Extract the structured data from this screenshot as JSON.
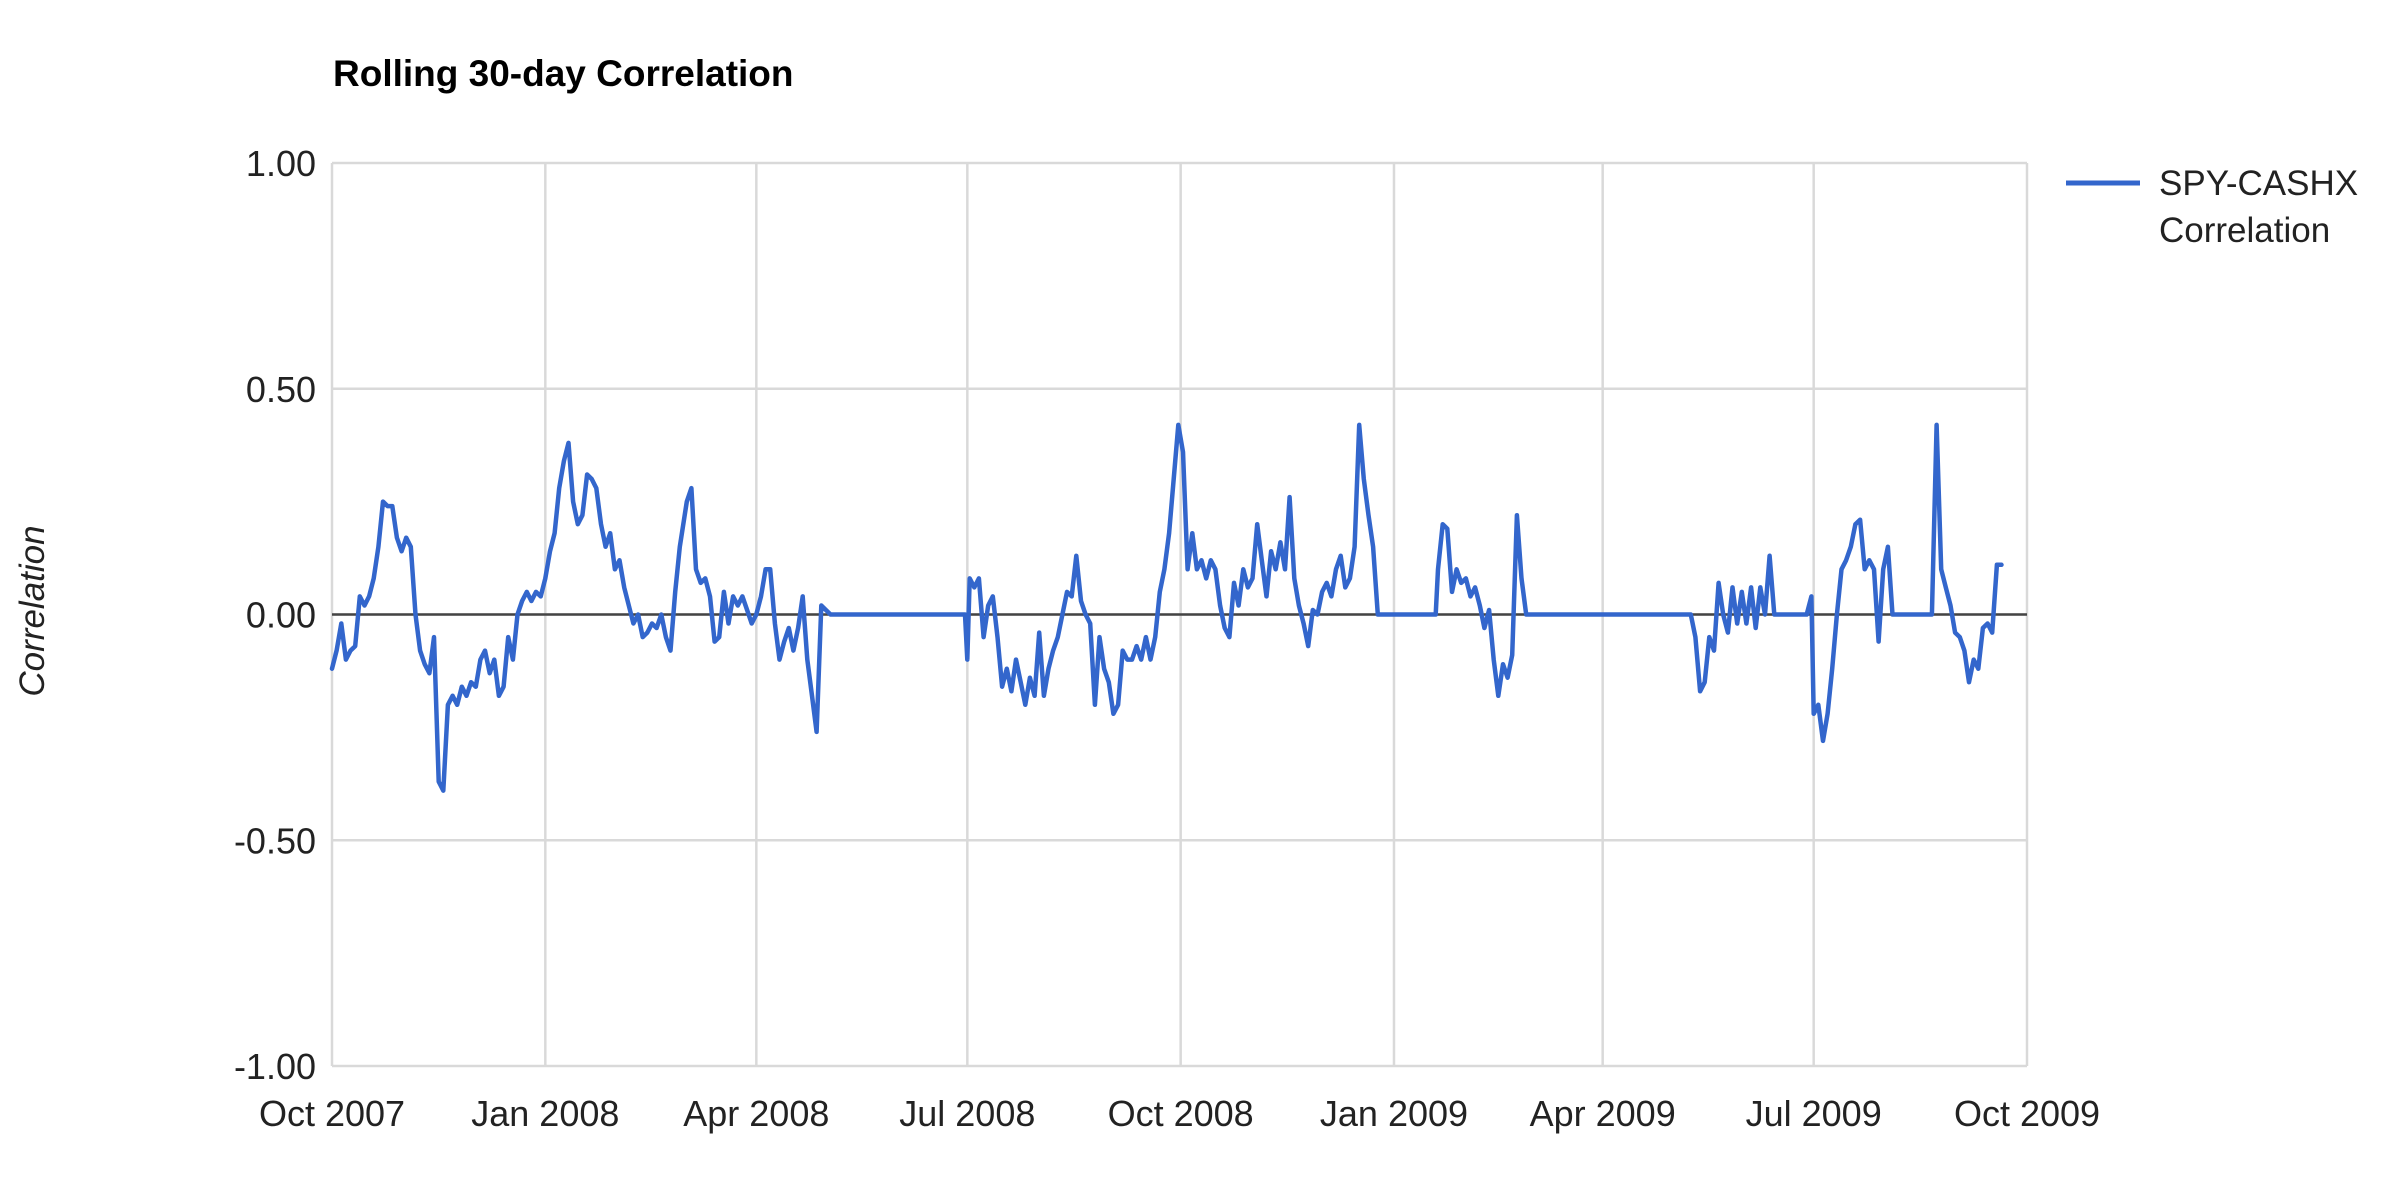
{
  "chart_data": {
    "type": "line",
    "title": "Rolling 30-day Correlation",
    "xlabel": "",
    "ylabel": "Correlation",
    "ylim": [
      -1,
      1
    ],
    "xlim": [
      "2007-10-01",
      "2009-10-01"
    ],
    "y_ticks": [
      "1.00",
      "0.50",
      "0.00",
      "-0.50",
      "-1.00"
    ],
    "y_tick_values": [
      1,
      0.5,
      0,
      -0.5,
      -1
    ],
    "x_ticks": [
      "Oct 2007",
      "Jan 2008",
      "Apr 2008",
      "Jul 2008",
      "Oct 2008",
      "Jan 2009",
      "Apr 2009",
      "Jul 2009",
      "Oct 2009"
    ],
    "x_tick_dates": [
      "2007-10-01",
      "2008-01-01",
      "2008-04-01",
      "2008-07-01",
      "2008-10-01",
      "2009-01-01",
      "2009-04-01",
      "2009-07-01",
      "2009-10-01"
    ],
    "grid": true,
    "legend_position": "right",
    "series": [
      {
        "name": "SPY-CASHX Correlation",
        "color": "#3366cc",
        "points": [
          [
            "2007-10-01",
            -0.12
          ],
          [
            "2007-10-03",
            -0.08
          ],
          [
            "2007-10-05",
            -0.02
          ],
          [
            "2007-10-07",
            -0.1
          ],
          [
            "2007-10-09",
            -0.08
          ],
          [
            "2007-10-11",
            -0.07
          ],
          [
            "2007-10-13",
            0.04
          ],
          [
            "2007-10-15",
            0.02
          ],
          [
            "2007-10-17",
            0.04
          ],
          [
            "2007-10-19",
            0.08
          ],
          [
            "2007-10-21",
            0.15
          ],
          [
            "2007-10-23",
            0.25
          ],
          [
            "2007-10-25",
            0.24
          ],
          [
            "2007-10-27",
            0.24
          ],
          [
            "2007-10-29",
            0.17
          ],
          [
            "2007-10-31",
            0.14
          ],
          [
            "2007-11-02",
            0.17
          ],
          [
            "2007-11-04",
            0.15
          ],
          [
            "2007-11-06",
            0.0
          ],
          [
            "2007-11-08",
            -0.08
          ],
          [
            "2007-11-10",
            -0.11
          ],
          [
            "2007-11-12",
            -0.13
          ],
          [
            "2007-11-14",
            -0.05
          ],
          [
            "2007-11-16",
            -0.37
          ],
          [
            "2007-11-18",
            -0.39
          ],
          [
            "2007-11-20",
            -0.2
          ],
          [
            "2007-11-22",
            -0.18
          ],
          [
            "2007-11-24",
            -0.2
          ],
          [
            "2007-11-26",
            -0.16
          ],
          [
            "2007-11-28",
            -0.18
          ],
          [
            "2007-11-30",
            -0.15
          ],
          [
            "2007-12-02",
            -0.16
          ],
          [
            "2007-12-04",
            -0.1
          ],
          [
            "2007-12-06",
            -0.08
          ],
          [
            "2007-12-08",
            -0.13
          ],
          [
            "2007-12-10",
            -0.1
          ],
          [
            "2007-12-12",
            -0.18
          ],
          [
            "2007-12-14",
            -0.16
          ],
          [
            "2007-12-16",
            -0.05
          ],
          [
            "2007-12-18",
            -0.1
          ],
          [
            "2007-12-20",
            0.0
          ],
          [
            "2007-12-22",
            0.03
          ],
          [
            "2007-12-24",
            0.05
          ],
          [
            "2007-12-26",
            0.03
          ],
          [
            "2007-12-28",
            0.05
          ],
          [
            "2007-12-30",
            0.04
          ],
          [
            "2008-01-01",
            0.08
          ],
          [
            "2008-01-03",
            0.14
          ],
          [
            "2008-01-05",
            0.18
          ],
          [
            "2008-01-07",
            0.28
          ],
          [
            "2008-01-09",
            0.34
          ],
          [
            "2008-01-11",
            0.38
          ],
          [
            "2008-01-13",
            0.25
          ],
          [
            "2008-01-15",
            0.2
          ],
          [
            "2008-01-17",
            0.22
          ],
          [
            "2008-01-19",
            0.31
          ],
          [
            "2008-01-21",
            0.3
          ],
          [
            "2008-01-23",
            0.28
          ],
          [
            "2008-01-25",
            0.2
          ],
          [
            "2008-01-27",
            0.15
          ],
          [
            "2008-01-29",
            0.18
          ],
          [
            "2008-01-31",
            0.1
          ],
          [
            "2008-02-02",
            0.12
          ],
          [
            "2008-02-04",
            0.06
          ],
          [
            "2008-02-06",
            0.02
          ],
          [
            "2008-02-08",
            -0.02
          ],
          [
            "2008-02-10",
            0.0
          ],
          [
            "2008-02-12",
            -0.05
          ],
          [
            "2008-02-14",
            -0.04
          ],
          [
            "2008-02-16",
            -0.02
          ],
          [
            "2008-02-18",
            -0.03
          ],
          [
            "2008-02-20",
            0.0
          ],
          [
            "2008-02-22",
            -0.05
          ],
          [
            "2008-02-24",
            -0.08
          ],
          [
            "2008-02-26",
            0.05
          ],
          [
            "2008-02-28",
            0.15
          ],
          [
            "2008-03-02",
            0.25
          ],
          [
            "2008-03-04",
            0.28
          ],
          [
            "2008-03-06",
            0.1
          ],
          [
            "2008-03-08",
            0.07
          ],
          [
            "2008-03-10",
            0.08
          ],
          [
            "2008-03-12",
            0.04
          ],
          [
            "2008-03-14",
            -0.06
          ],
          [
            "2008-03-16",
            -0.05
          ],
          [
            "2008-03-18",
            0.05
          ],
          [
            "2008-03-20",
            -0.02
          ],
          [
            "2008-03-22",
            0.04
          ],
          [
            "2008-03-24",
            0.02
          ],
          [
            "2008-03-26",
            0.04
          ],
          [
            "2008-03-28",
            0.01
          ],
          [
            "2008-03-30",
            -0.02
          ],
          [
            "2008-04-01",
            0.0
          ],
          [
            "2008-04-03",
            0.04
          ],
          [
            "2008-04-05",
            0.1
          ],
          [
            "2008-04-07",
            0.1
          ],
          [
            "2008-04-09",
            -0.02
          ],
          [
            "2008-04-11",
            -0.1
          ],
          [
            "2008-04-13",
            -0.06
          ],
          [
            "2008-04-15",
            -0.03
          ],
          [
            "2008-04-17",
            -0.08
          ],
          [
            "2008-04-19",
            -0.03
          ],
          [
            "2008-04-21",
            0.04
          ],
          [
            "2008-04-23",
            -0.1
          ],
          [
            "2008-04-25",
            -0.18
          ],
          [
            "2008-04-27",
            -0.26
          ],
          [
            "2008-04-29",
            0.02
          ],
          [
            "2008-05-01",
            0.01
          ],
          [
            "2008-05-03",
            0.0
          ],
          [
            "2008-06-30",
            0.0
          ],
          [
            "2008-07-01",
            -0.1
          ],
          [
            "2008-07-02",
            0.08
          ],
          [
            "2008-07-04",
            0.06
          ],
          [
            "2008-07-06",
            0.08
          ],
          [
            "2008-07-08",
            -0.05
          ],
          [
            "2008-07-10",
            0.02
          ],
          [
            "2008-07-12",
            0.04
          ],
          [
            "2008-07-14",
            -0.05
          ],
          [
            "2008-07-16",
            -0.16
          ],
          [
            "2008-07-18",
            -0.12
          ],
          [
            "2008-07-20",
            -0.17
          ],
          [
            "2008-07-22",
            -0.1
          ],
          [
            "2008-07-24",
            -0.15
          ],
          [
            "2008-07-26",
            -0.2
          ],
          [
            "2008-07-28",
            -0.14
          ],
          [
            "2008-07-30",
            -0.18
          ],
          [
            "2008-08-01",
            -0.04
          ],
          [
            "2008-08-03",
            -0.18
          ],
          [
            "2008-08-05",
            -0.12
          ],
          [
            "2008-08-07",
            -0.08
          ],
          [
            "2008-08-09",
            -0.05
          ],
          [
            "2008-08-11",
            0.0
          ],
          [
            "2008-08-13",
            0.05
          ],
          [
            "2008-08-15",
            0.04
          ],
          [
            "2008-08-17",
            0.13
          ],
          [
            "2008-08-19",
            0.03
          ],
          [
            "2008-08-21",
            0.0
          ],
          [
            "2008-08-23",
            -0.02
          ],
          [
            "2008-08-25",
            -0.2
          ],
          [
            "2008-08-27",
            -0.05
          ],
          [
            "2008-08-29",
            -0.12
          ],
          [
            "2008-08-31",
            -0.15
          ],
          [
            "2008-09-02",
            -0.22
          ],
          [
            "2008-09-04",
            -0.2
          ],
          [
            "2008-09-06",
            -0.08
          ],
          [
            "2008-09-08",
            -0.1
          ],
          [
            "2008-09-10",
            -0.1
          ],
          [
            "2008-09-12",
            -0.07
          ],
          [
            "2008-09-14",
            -0.1
          ],
          [
            "2008-09-16",
            -0.05
          ],
          [
            "2008-09-18",
            -0.1
          ],
          [
            "2008-09-20",
            -0.05
          ],
          [
            "2008-09-22",
            0.05
          ],
          [
            "2008-09-24",
            0.1
          ],
          [
            "2008-09-26",
            0.18
          ],
          [
            "2008-09-28",
            0.3
          ],
          [
            "2008-09-30",
            0.42
          ],
          [
            "2008-10-02",
            0.36
          ],
          [
            "2008-10-04",
            0.1
          ],
          [
            "2008-10-06",
            0.18
          ],
          [
            "2008-10-08",
            0.1
          ],
          [
            "2008-10-10",
            0.12
          ],
          [
            "2008-10-12",
            0.08
          ],
          [
            "2008-10-14",
            0.12
          ],
          [
            "2008-10-16",
            0.1
          ],
          [
            "2008-10-18",
            0.02
          ],
          [
            "2008-10-20",
            -0.03
          ],
          [
            "2008-10-22",
            -0.05
          ],
          [
            "2008-10-24",
            0.07
          ],
          [
            "2008-10-26",
            0.02
          ],
          [
            "2008-10-28",
            0.1
          ],
          [
            "2008-10-30",
            0.06
          ],
          [
            "2008-11-01",
            0.08
          ],
          [
            "2008-11-03",
            0.2
          ],
          [
            "2008-11-05",
            0.12
          ],
          [
            "2008-11-07",
            0.04
          ],
          [
            "2008-11-09",
            0.14
          ],
          [
            "2008-11-11",
            0.1
          ],
          [
            "2008-11-13",
            0.16
          ],
          [
            "2008-11-15",
            0.1
          ],
          [
            "2008-11-17",
            0.26
          ],
          [
            "2008-11-19",
            0.08
          ],
          [
            "2008-11-21",
            0.02
          ],
          [
            "2008-11-23",
            -0.02
          ],
          [
            "2008-11-25",
            -0.07
          ],
          [
            "2008-11-27",
            0.01
          ],
          [
            "2008-11-29",
            0.0
          ],
          [
            "2008-12-01",
            0.05
          ],
          [
            "2008-12-03",
            0.07
          ],
          [
            "2008-12-05",
            0.04
          ],
          [
            "2008-12-07",
            0.1
          ],
          [
            "2008-12-09",
            0.13
          ],
          [
            "2008-12-11",
            0.06
          ],
          [
            "2008-12-13",
            0.08
          ],
          [
            "2008-12-15",
            0.15
          ],
          [
            "2008-12-17",
            0.42
          ],
          [
            "2008-12-19",
            0.3
          ],
          [
            "2008-12-21",
            0.22
          ],
          [
            "2008-12-23",
            0.15
          ],
          [
            "2008-12-25",
            0.0
          ],
          [
            "2009-01-19",
            0.0
          ],
          [
            "2009-01-20",
            0.1
          ],
          [
            "2009-01-22",
            0.2
          ],
          [
            "2009-01-24",
            0.19
          ],
          [
            "2009-01-26",
            0.05
          ],
          [
            "2009-01-28",
            0.1
          ],
          [
            "2009-01-30",
            0.07
          ],
          [
            "2009-02-01",
            0.08
          ],
          [
            "2009-02-03",
            0.04
          ],
          [
            "2009-02-05",
            0.06
          ],
          [
            "2009-02-07",
            0.02
          ],
          [
            "2009-02-09",
            -0.03
          ],
          [
            "2009-02-11",
            0.01
          ],
          [
            "2009-02-13",
            -0.1
          ],
          [
            "2009-02-15",
            -0.18
          ],
          [
            "2009-02-17",
            -0.11
          ],
          [
            "2009-02-19",
            -0.14
          ],
          [
            "2009-02-21",
            -0.09
          ],
          [
            "2009-02-23",
            0.22
          ],
          [
            "2009-02-25",
            0.08
          ],
          [
            "2009-02-27",
            0.0
          ],
          [
            "2009-05-09",
            0.0
          ],
          [
            "2009-05-11",
            -0.05
          ],
          [
            "2009-05-13",
            -0.17
          ],
          [
            "2009-05-15",
            -0.15
          ],
          [
            "2009-05-17",
            -0.05
          ],
          [
            "2009-05-19",
            -0.08
          ],
          [
            "2009-05-21",
            0.07
          ],
          [
            "2009-05-23",
            0.0
          ],
          [
            "2009-05-25",
            -0.04
          ],
          [
            "2009-05-27",
            0.06
          ],
          [
            "2009-05-29",
            -0.02
          ],
          [
            "2009-05-31",
            0.05
          ],
          [
            "2009-06-02",
            -0.02
          ],
          [
            "2009-06-04",
            0.06
          ],
          [
            "2009-06-06",
            -0.03
          ],
          [
            "2009-06-08",
            0.06
          ],
          [
            "2009-06-10",
            0.0
          ],
          [
            "2009-06-12",
            0.13
          ],
          [
            "2009-06-14",
            0.0
          ],
          [
            "2009-06-28",
            0.0
          ],
          [
            "2009-06-30",
            0.04
          ],
          [
            "2009-07-01",
            -0.22
          ],
          [
            "2009-07-03",
            -0.2
          ],
          [
            "2009-07-05",
            -0.28
          ],
          [
            "2009-07-07",
            -0.22
          ],
          [
            "2009-07-09",
            -0.12
          ],
          [
            "2009-07-11",
            0.0
          ],
          [
            "2009-07-13",
            0.1
          ],
          [
            "2009-07-15",
            0.12
          ],
          [
            "2009-07-17",
            0.15
          ],
          [
            "2009-07-19",
            0.2
          ],
          [
            "2009-07-21",
            0.21
          ],
          [
            "2009-07-23",
            0.1
          ],
          [
            "2009-07-25",
            0.12
          ],
          [
            "2009-07-27",
            0.1
          ],
          [
            "2009-07-29",
            -0.06
          ],
          [
            "2009-07-31",
            0.1
          ],
          [
            "2009-08-02",
            0.15
          ],
          [
            "2009-08-04",
            0.0
          ],
          [
            "2009-08-21",
            0.0
          ],
          [
            "2009-08-23",
            0.42
          ],
          [
            "2009-08-25",
            0.1
          ],
          [
            "2009-08-27",
            0.06
          ],
          [
            "2009-08-29",
            0.02
          ],
          [
            "2009-08-31",
            -0.04
          ],
          [
            "2009-09-02",
            -0.05
          ],
          [
            "2009-09-04",
            -0.08
          ],
          [
            "2009-09-06",
            -0.15
          ],
          [
            "2009-09-08",
            -0.1
          ],
          [
            "2009-09-10",
            -0.12
          ],
          [
            "2009-09-12",
            -0.03
          ],
          [
            "2009-09-14",
            -0.02
          ],
          [
            "2009-09-16",
            -0.04
          ],
          [
            "2009-09-18",
            0.11
          ],
          [
            "2009-09-20",
            0.11
          ]
        ]
      }
    ]
  }
}
